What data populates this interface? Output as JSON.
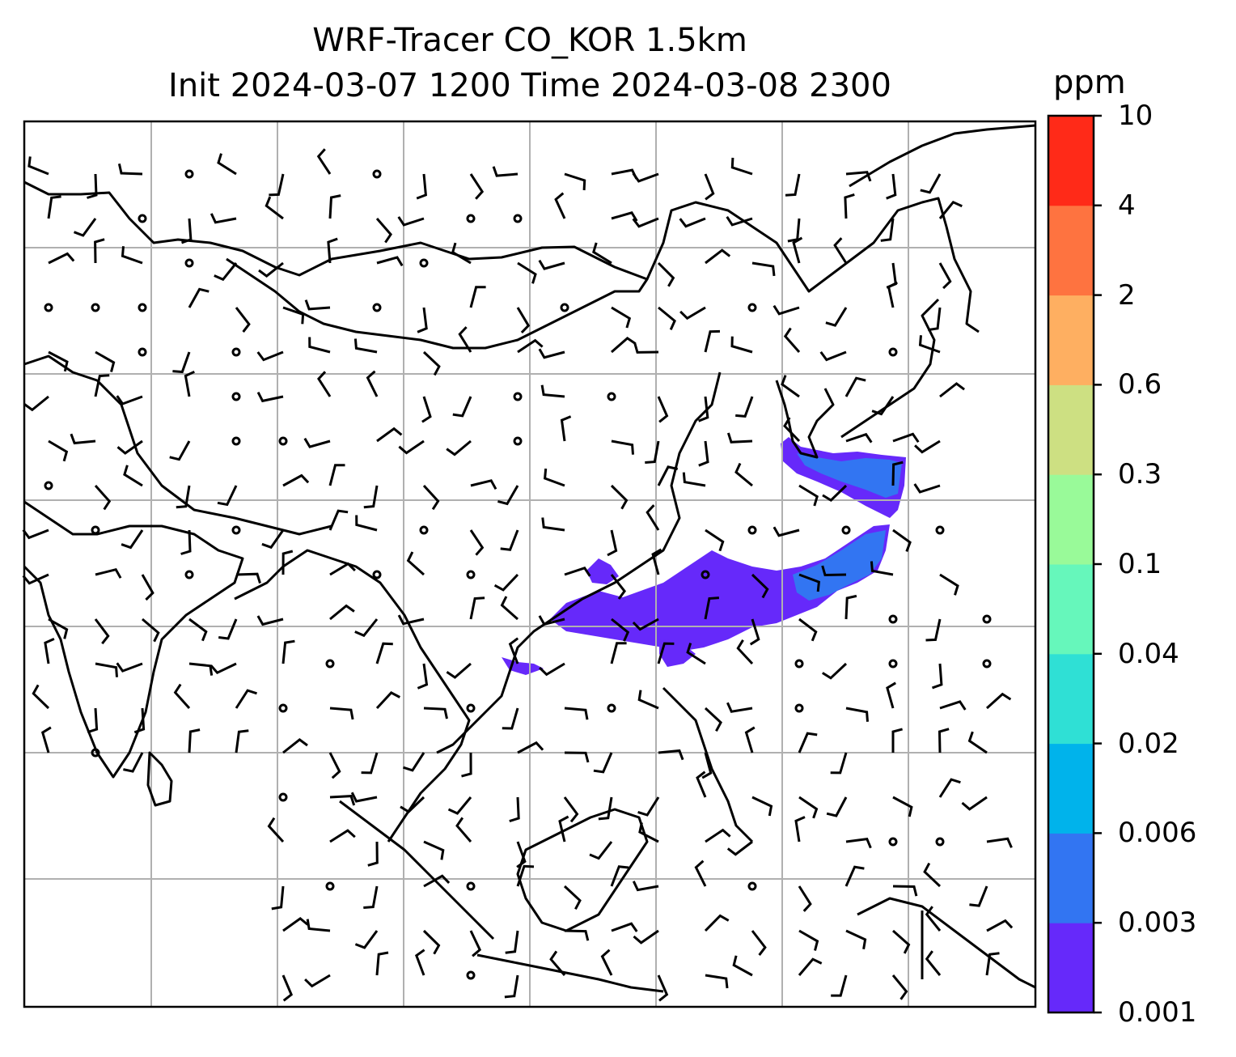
{
  "title": {
    "line1": "WRF-Tracer CO_KOR 1.5km",
    "line2": "Init 2024-03-07 1200 Time 2024-03-08 2300"
  },
  "colorbar": {
    "unit": "ppm",
    "levels": [
      "0.001",
      "0.003",
      "0.006",
      "0.02",
      "0.04",
      "0.1",
      "0.3",
      "0.6",
      "2",
      "4",
      "10"
    ],
    "colors": [
      "#6629fa",
      "#3275f2",
      "#00b3eb",
      "#2fe0d5",
      "#66f7bb",
      "#99fa99",
      "#cde082",
      "#feaf61",
      "#fe7340",
      "#ff2a18"
    ]
  },
  "map": {
    "border_color": "#000000",
    "grid_color": "#b0b0b0",
    "coast_color": "#000000",
    "plume_colors": {
      "low": "#6629fa",
      "mid": "#3275f2"
    }
  }
}
